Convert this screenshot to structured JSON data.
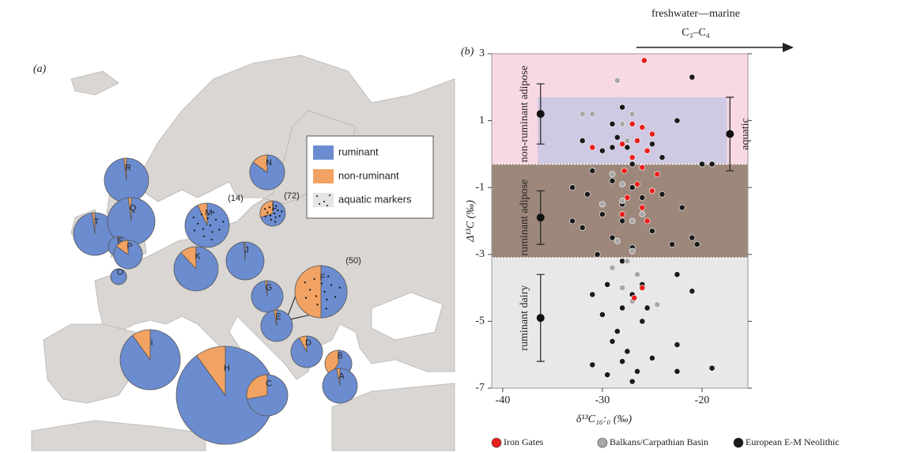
{
  "chart_data": [
    {
      "type": "pie-map",
      "panel_label": "(a)",
      "legend": [
        {
          "label": "ruminant",
          "color": "#6c8cd0"
        },
        {
          "label": "non-ruminant",
          "color": "#f2a262"
        },
        {
          "label": "aquatic markers",
          "color": "#e4e4e4"
        }
      ],
      "pies": [
        {
          "label": "R",
          "values": [
            98,
            2
          ]
        },
        {
          "label": "N",
          "values": [
            85,
            15
          ]
        },
        {
          "label": "T",
          "values": [
            98,
            2
          ]
        },
        {
          "label": "Q",
          "values": [
            98,
            2
          ]
        },
        {
          "label": "S",
          "values": [
            98,
            2
          ]
        },
        {
          "label": "P",
          "values": [
            85,
            15
          ]
        },
        {
          "label": "O",
          "values": [
            100,
            0
          ]
        },
        {
          "label": "M",
          "values": [
            93,
            7
          ],
          "aquatic": true,
          "count": "(14)"
        },
        {
          "label": "L",
          "values": [
            70,
            30
          ],
          "aquatic": true,
          "count": "(72)"
        },
        {
          "label": "K",
          "values": [
            88,
            12
          ]
        },
        {
          "label": "J",
          "values": [
            99,
            1
          ]
        },
        {
          "label": "F",
          "values": [
            50,
            50
          ],
          "aquatic": true,
          "count": "(50)"
        },
        {
          "label": "G",
          "values": [
            98,
            2
          ]
        },
        {
          "label": "E",
          "values": [
            97,
            3
          ]
        },
        {
          "label": "I",
          "values": [
            90,
            10
          ]
        },
        {
          "label": "H",
          "values": [
            90,
            10
          ]
        },
        {
          "label": "D",
          "values": [
            92,
            8
          ]
        },
        {
          "label": "B",
          "values": [
            60,
            40
          ]
        },
        {
          "label": "C",
          "values": [
            72,
            28
          ]
        },
        {
          "label": "A",
          "values": [
            97,
            3
          ]
        }
      ]
    },
    {
      "type": "scatter",
      "panel_label": "(b)",
      "annotation": [
        "freshwater—marine",
        "C₃–C₄"
      ],
      "xlabel": "δ¹³C₁₆:₀ (‰)",
      "ylabel": "Δ¹³C (‰)",
      "xlim": [
        -41.1,
        -15.4
      ],
      "ylim": [
        -7,
        3
      ],
      "xticks": [
        -40,
        -30,
        -20
      ],
      "yticks": [
        3,
        1,
        -1,
        -3,
        -5,
        -7
      ],
      "zones": [
        {
          "ymin": -0.3,
          "ymax": 3,
          "color": "#f9d9e1"
        },
        {
          "ymin": -3.1,
          "ymax": -0.3,
          "color": "#9d877a"
        },
        {
          "ymin": -7,
          "ymax": -3.1,
          "color": "#e8e8e8"
        }
      ],
      "aquatic_box": {
        "xmin": -36.5,
        "xmax": -17.5,
        "ymin": -0.3,
        "ymax": 1.7,
        "color": "#c9c5e3"
      },
      "references": [
        {
          "label": "non-ruminant adipose",
          "x": -36.2,
          "value": 1.2,
          "error": 0.9
        },
        {
          "label": "ruminant adipose",
          "x": -36.2,
          "value": -1.9,
          "error": 0.8
        },
        {
          "label": "ruminant dairy",
          "x": -36.2,
          "value": -4.9,
          "error": 1.3
        },
        {
          "label": "aquatic",
          "x": -17.2,
          "value": 0.6,
          "error": 1.1
        }
      ],
      "series": [
        {
          "name": "European E-M Neolithic",
          "color": "#1a1a1a",
          "x": [
            -28,
            -27,
            -29,
            -26,
            -28.5,
            -27.5,
            -30,
            -25,
            -31,
            -29,
            -27,
            -26,
            -28,
            -30,
            -24,
            -22,
            -33,
            -32,
            -29,
            -27,
            -28,
            -26.5,
            -29.5,
            -27,
            -28,
            -30,
            -26,
            -28.5,
            -29,
            -27.5,
            -28,
            -26.5,
            -31,
            -29.5,
            -27,
            -25,
            -22.5,
            -22.5,
            -19,
            -22.5,
            -21,
            -21,
            -22.5,
            -20,
            -19,
            -21,
            -20.5,
            -24,
            -32,
            -33,
            -25,
            -26,
            -30.5,
            -31,
            -25.5,
            -28,
            -27,
            -29,
            -23,
            -31.5
          ],
          "values": [
            1.4,
            1.2,
            0.9,
            0.8,
            0.5,
            0.2,
            0.1,
            0.3,
            -0.5,
            -0.8,
            -1,
            -1.3,
            -1.5,
            -1.8,
            -1.2,
            -1.6,
            -1,
            -2.2,
            -2.5,
            -2.8,
            -3.2,
            -3.6,
            -3.9,
            -4.2,
            -4.6,
            -4.8,
            -5,
            -5.3,
            -5.6,
            -5.9,
            -6.2,
            -6.5,
            -6.3,
            -6.6,
            -6.8,
            -6.1,
            -6.5,
            -5.7,
            -6.4,
            -3.6,
            -4.1,
            2.3,
            1,
            -0.3,
            -0.3,
            -2.5,
            -2.7,
            -0.1,
            0.4,
            -2,
            -2.3,
            -3.9,
            -3,
            -4.2,
            -4.6,
            -2,
            -0.3,
            0.2,
            -2.7,
            -1.2
          ]
        },
        {
          "name": "Balkans/Carpathian Basin",
          "color": "#a8a8a8",
          "x": [
            -28.5,
            -32,
            -31,
            -27,
            -28,
            -27.5,
            -29,
            -28,
            -27,
            -28.5,
            -27.5,
            -26.5,
            -28,
            -27,
            -24.5,
            -29,
            -26,
            -28,
            -30,
            -27
          ],
          "values": [
            2.2,
            1.2,
            1.2,
            1.2,
            0.9,
            0.4,
            -0.6,
            -1.4,
            -2,
            -2.6,
            -3.2,
            -3.6,
            -4,
            -4.4,
            -4.5,
            -3.4,
            -1.8,
            -0.9,
            -1.5,
            -2.9
          ]
        },
        {
          "name": "Iron Gates",
          "color": "#e8201c",
          "x": [
            -25.8,
            -27,
            -26,
            -25,
            -26.5,
            -28,
            -25.5,
            -27,
            -26,
            -24.5,
            -26.5,
            -25,
            -27.5,
            -26,
            -28,
            -25.5,
            -31,
            -26,
            -26.8,
            -27.8
          ],
          "values": [
            2.8,
            0.9,
            0.8,
            0.6,
            0.4,
            0.3,
            0.1,
            -0.1,
            -0.4,
            -0.6,
            -0.9,
            -1.1,
            -1.3,
            -1.6,
            -1.8,
            -2,
            0.2,
            -4,
            -4.3,
            -0.5
          ]
        }
      ]
    }
  ]
}
